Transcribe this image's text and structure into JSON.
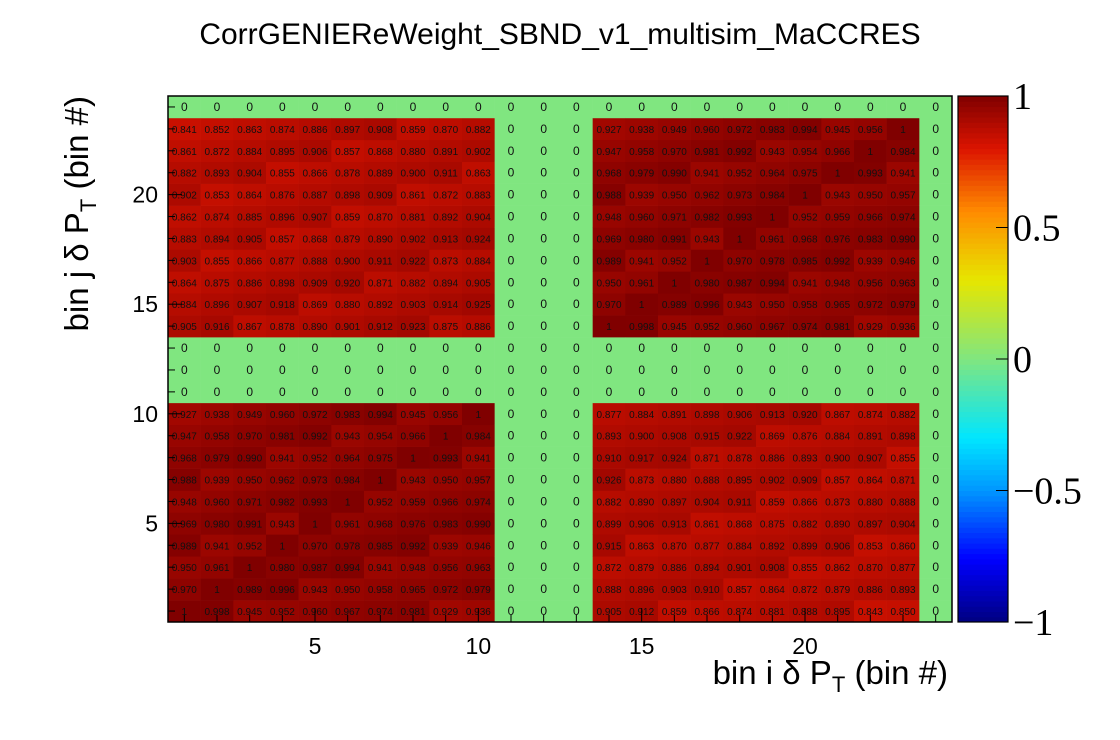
{
  "chart_data": {
    "type": "heatmap",
    "title": "CorrGENIEReWeight_SBND_v1_multisim_MaCCRES",
    "xlabel": {
      "main": "bin i  δ P",
      "sub": "T",
      "tail": " (bin #)"
    },
    "ylabel": {
      "main": "bin j  δ P",
      "sub": "T",
      "tail": " (bin #)"
    },
    "x_range": [
      0.5,
      24.5
    ],
    "y_range": [
      0.5,
      24.5
    ],
    "x_ticks": [
      5,
      10,
      15,
      20
    ],
    "y_ticks": [
      5,
      10,
      15,
      20
    ],
    "z_range": [
      -1,
      1
    ],
    "z_ticks": [
      -1,
      -0.5,
      0,
      0.5,
      1
    ],
    "z_tick_labels": [
      "−1",
      "−0.5",
      "0",
      "0.5",
      "1"
    ],
    "colormap": "rainbow",
    "zero_bins": [
      11,
      12,
      13,
      24
    ],
    "cell_text": {
      "zero_label": "0",
      "one_label": "1",
      "diagonal_label": "1"
    },
    "base_correlation_same_block": 0.98,
    "base_correlation_cross_block": 0.92,
    "dense_cell_text_note": ""
  }
}
